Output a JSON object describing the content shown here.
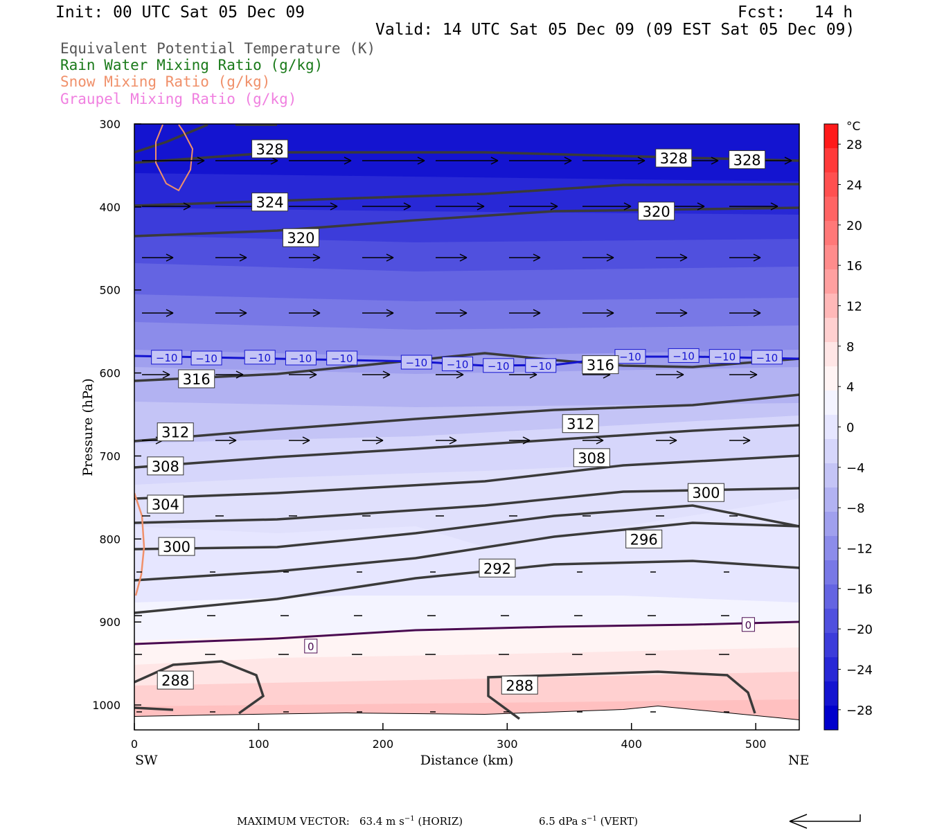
{
  "header": {
    "init": "Init: 00 UTC Sat 05 Dec 09",
    "fcst": "Fcst:   14 h",
    "valid": "Valid: 14 UTC Sat 05 Dec 09 (09 EST Sat 05 Dec 09)"
  },
  "legend": [
    {
      "label": "Equivalent Potential Temperature (K)",
      "color": "#555555"
    },
    {
      "label": "Rain Water Mixing Ratio (g/kg)",
      "color": "#1a7a1a"
    },
    {
      "label": "Snow Mixing Ratio (g/kg)",
      "color": "#f0906a"
    },
    {
      "label": "Graupel Mixing Ratio (g/kg)",
      "color": "#f080e0"
    }
  ],
  "chart_data": {
    "type": "contour_cross_section",
    "xlabel": "Distance (km)",
    "ylabel": "Pressure (hPa)",
    "xlim": [
      0,
      535
    ],
    "ylim": [
      1030,
      300
    ],
    "x_ticks": [
      0,
      100,
      200,
      300,
      400,
      500
    ],
    "y_ticks": [
      300,
      400,
      500,
      600,
      700,
      800,
      900,
      1000
    ],
    "x_left_label": "SW",
    "x_right_label": "NE",
    "colorbar": {
      "unit": "°C",
      "ticks": [
        28,
        24,
        20,
        16,
        12,
        8,
        4,
        0,
        -4,
        -8,
        -12,
        -16,
        -20,
        -24,
        -28
      ],
      "tick_labels": [
        "28",
        "24",
        "20",
        "16",
        "12",
        "8",
        "4",
        "0",
        "−4",
        "−8",
        "−12",
        "−16",
        "−20",
        "−24",
        "−28"
      ],
      "colors_top_to_bottom": [
        "#ff1a1a",
        "#ff3a3a",
        "#ff5050",
        "#ff6464",
        "#ff7878",
        "#ff8c8c",
        "#ffa0a0",
        "#ffb8b8",
        "#ffd0d0",
        "#ffe6e6",
        "#fff4f4",
        "#f4f4ff",
        "#e6e6ff",
        "#d6d6fb",
        "#c4c4f6",
        "#b2b2f2",
        "#a0a0ee",
        "#8c8cea",
        "#7878e6",
        "#6464e2",
        "#5050de",
        "#3c3cda",
        "#2828d6",
        "#1414d0",
        "#0000cc"
      ]
    },
    "temperature_labels": [
      {
        "text": "−10",
        "x": 26,
        "p": 581
      },
      {
        "text": "−10",
        "x": 58,
        "p": 582
      },
      {
        "text": "−10",
        "x": 101,
        "p": 581
      },
      {
        "text": "−10",
        "x": 134,
        "p": 582
      },
      {
        "text": "−10",
        "x": 167,
        "p": 582
      },
      {
        "text": "−10",
        "x": 227,
        "p": 587
      },
      {
        "text": "−10",
        "x": 260,
        "p": 589
      },
      {
        "text": "−10",
        "x": 293,
        "p": 591
      },
      {
        "text": "−10",
        "x": 327,
        "p": 591
      },
      {
        "text": "−10",
        "x": 399,
        "p": 580
      },
      {
        "text": "−10",
        "x": 442,
        "p": 579
      },
      {
        "text": "−10",
        "x": 475,
        "p": 580
      },
      {
        "text": "−10",
        "x": 509,
        "p": 581
      },
      {
        "text": "0",
        "x": 142,
        "p": 929
      },
      {
        "text": "0",
        "x": 494,
        "p": 903
      }
    ],
    "theta_e_labels": [
      {
        "text": "328",
        "x": 109,
        "p": 330
      },
      {
        "text": "328",
        "x": 434,
        "p": 341
      },
      {
        "text": "328",
        "x": 493,
        "p": 343
      },
      {
        "text": "324",
        "x": 109,
        "p": 394
      },
      {
        "text": "320",
        "x": 420,
        "p": 405
      },
      {
        "text": "320",
        "x": 134,
        "p": 437
      },
      {
        "text": "316",
        "x": 375,
        "p": 590
      },
      {
        "text": "316",
        "x": 50,
        "p": 607
      },
      {
        "text": "312",
        "x": 359,
        "p": 661
      },
      {
        "text": "312",
        "x": 33,
        "p": 671
      },
      {
        "text": "308",
        "x": 368,
        "p": 702
      },
      {
        "text": "308",
        "x": 25,
        "p": 712
      },
      {
        "text": "304",
        "x": 25,
        "p": 758
      },
      {
        "text": "300",
        "x": 460,
        "p": 744
      },
      {
        "text": "296",
        "x": 410,
        "p": 800
      },
      {
        "text": "300",
        "x": 34,
        "p": 809
      },
      {
        "text": "292",
        "x": 292,
        "p": 835
      },
      {
        "text": "288",
        "x": 33,
        "p": 970
      },
      {
        "text": "288",
        "x": 310,
        "p": 976
      }
    ]
  },
  "footer": {
    "max_label": "MAXIMUM VECTOR:",
    "horiz_value": "63.4 m s",
    "horiz_exp": "−1",
    "horiz_tag": "(HORIZ)",
    "vert_value": "6.5 dPa s",
    "vert_exp": "−1",
    "vert_tag": "(VERT)"
  }
}
